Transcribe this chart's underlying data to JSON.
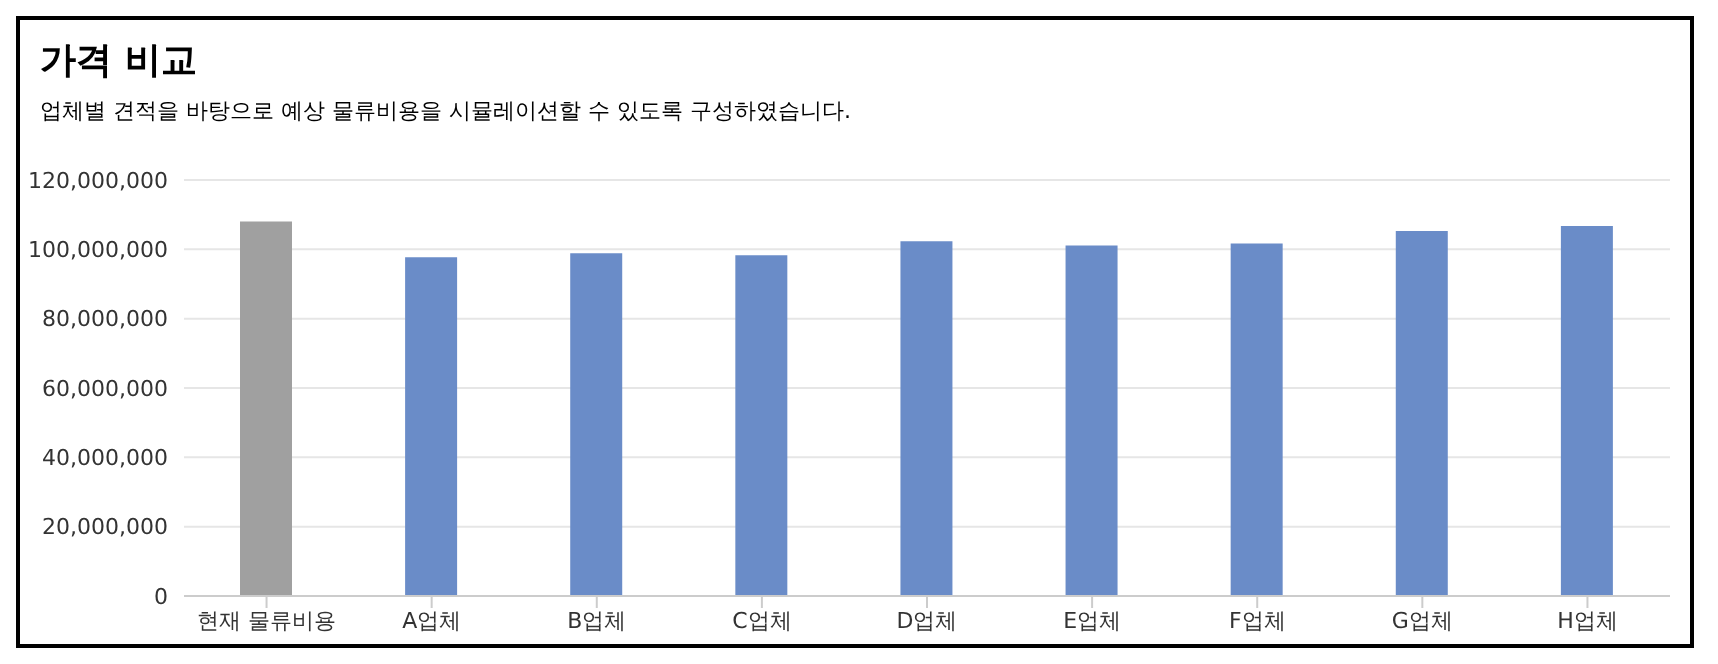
{
  "chart_data": {
    "type": "bar",
    "title": "가격 비교",
    "subtitle": "업체별 견적을 바탕으로 예상 물류비용을 시뮬레이션할 수 있도록 구성하였습니다.",
    "categories": [
      "현재 물류비용",
      "A업체",
      "B업체",
      "C업체",
      "D업체",
      "E업체",
      "F업체",
      "G업체",
      "H업체"
    ],
    "values": [
      108000000,
      97700000,
      98900000,
      98300000,
      102300000,
      101100000,
      101700000,
      105300000,
      106700000
    ],
    "colors": [
      "#a0a0a0",
      "#6a8cc8",
      "#6a8cc8",
      "#6a8cc8",
      "#6a8cc8",
      "#6a8cc8",
      "#6a8cc8",
      "#6a8cc8",
      "#6a8cc8"
    ],
    "ylim": [
      0,
      120000000
    ],
    "yticks": [
      0,
      {
        "value": 20000000,
        "label": "20,000,000"
      },
      {
        "value": 40000000,
        "label": "40,000,000"
      },
      {
        "value": 60000000,
        "label": "60,000,000"
      },
      {
        "value": 80000000,
        "label": "80,000,000"
      },
      {
        "value": 100000000,
        "label": "100,000,000"
      },
      {
        "value": 120000000,
        "label": "120,000,000"
      }
    ],
    "grid": "y"
  }
}
